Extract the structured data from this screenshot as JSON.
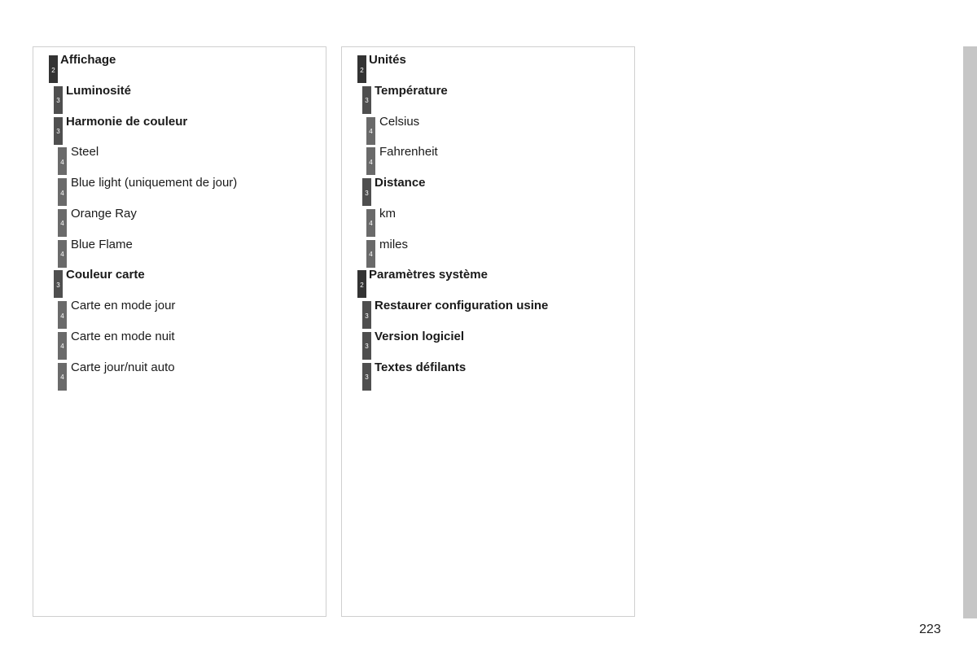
{
  "columns": [
    {
      "items": [
        {
          "level": "2",
          "label": "Affichage"
        },
        {
          "level": "3",
          "label": "Luminosité"
        },
        {
          "level": "3",
          "label": "Harmonie de couleur"
        },
        {
          "level": "4",
          "label": "Steel"
        },
        {
          "level": "4",
          "label": "Blue light (uniquement de jour)"
        },
        {
          "level": "4",
          "label": "Orange Ray"
        },
        {
          "level": "4",
          "label": "Blue Flame"
        },
        {
          "level": "3",
          "label": "Couleur carte"
        },
        {
          "level": "4",
          "label": "Carte en mode jour"
        },
        {
          "level": "4",
          "label": "Carte en mode nuit"
        },
        {
          "level": "4",
          "label": "Carte jour/nuit auto"
        }
      ]
    },
    {
      "items": [
        {
          "level": "2",
          "label": "Unités"
        },
        {
          "level": "3",
          "label": "Température"
        },
        {
          "level": "4",
          "label": "Celsius"
        },
        {
          "level": "4",
          "label": "Fahrenheit"
        },
        {
          "level": "3",
          "label": "Distance"
        },
        {
          "level": "4",
          "label": "km"
        },
        {
          "level": "4",
          "label": "miles"
        },
        {
          "level": "2",
          "label": "Paramètres système"
        },
        {
          "level": "3",
          "label": "Restaurer configuration usine"
        },
        {
          "level": "3",
          "label": "Version logiciel"
        },
        {
          "level": "3",
          "label": "Textes défilants"
        }
      ]
    }
  ],
  "page_number": "223",
  "colors": {
    "level2": "#333333",
    "level3": "#4f4f4f",
    "level4": "#6a6a6a",
    "side_tab": "#c6c6c6"
  }
}
